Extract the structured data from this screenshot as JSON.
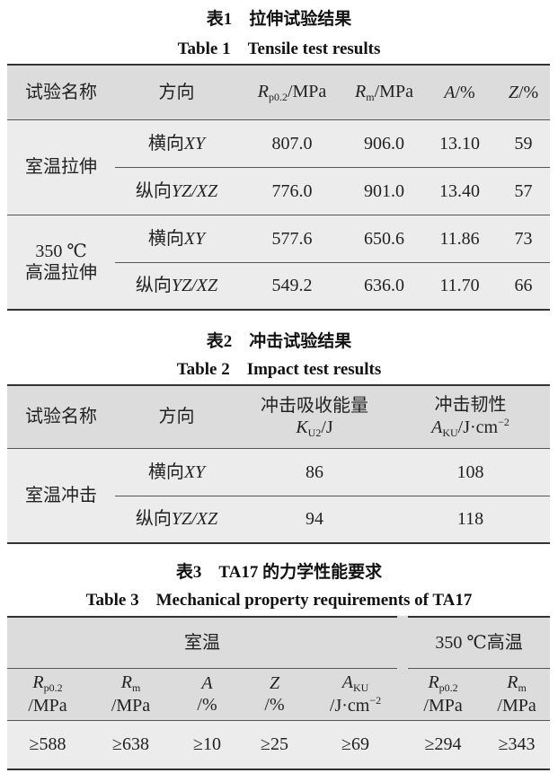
{
  "table1": {
    "title_zh": "表1　拉伸试验结果",
    "title_en": "Table 1　Tensile test results",
    "headers": [
      {
        "text": "试验名称"
      },
      {
        "text": "方向"
      },
      {
        "sym": "R",
        "sub": "p0.2",
        "unit": "/MPa"
      },
      {
        "sym": "R",
        "sub": "m",
        "unit": "/MPa"
      },
      {
        "sym": "A",
        "unit": "/%"
      },
      {
        "sym": "Z",
        "unit": "/%"
      }
    ],
    "groups": [
      {
        "name": "室温拉伸",
        "rows": [
          {
            "dir_zh": "横向",
            "dir_code": "XY",
            "rp02": "807.0",
            "rm": "906.0",
            "a": "13.10",
            "z": "59"
          },
          {
            "dir_zh": "纵向",
            "dir_code": "YZ/XZ",
            "rp02": "776.0",
            "rm": "901.0",
            "a": "13.40",
            "z": "57"
          }
        ]
      },
      {
        "name_line1": "350 ℃",
        "name_line2": "高温拉伸",
        "rows": [
          {
            "dir_zh": "横向",
            "dir_code": "XY",
            "rp02": "577.6",
            "rm": "650.6",
            "a": "11.86",
            "z": "73"
          },
          {
            "dir_zh": "纵向",
            "dir_code": "YZ/XZ",
            "rp02": "549.2",
            "rm": "636.0",
            "a": "11.70",
            "z": "66"
          }
        ]
      }
    ]
  },
  "table2": {
    "title_zh": "表2　冲击试验结果",
    "title_en": "Table 2　Impact test results",
    "headers": {
      "name": "试验名称",
      "dir": "方向",
      "energy_label": "冲击吸收能量",
      "energy_sym": "K",
      "energy_sub": "U2",
      "energy_unit": "/J",
      "tough_label": "冲击韧性",
      "tough_sym": "A",
      "tough_sub": "KU",
      "tough_unit": "/J·cm",
      "tough_exp": "−2"
    },
    "group": "室温冲击",
    "rows": [
      {
        "dir_zh": "横向",
        "dir_code": "XY",
        "k": "86",
        "a": "108"
      },
      {
        "dir_zh": "纵向",
        "dir_code": "YZ/XZ",
        "k": "94",
        "a": "118"
      }
    ]
  },
  "table3": {
    "title_zh": "表3　TA17 的力学性能要求",
    "title_en": "Table 3　Mechanical property requirements of TA17",
    "group_rt": "室温",
    "group_ht": "350 ℃高温",
    "headers": [
      {
        "sym": "R",
        "sub": "p0.2",
        "unit": "/MPa"
      },
      {
        "sym": "R",
        "sub": "m",
        "unit": "/MPa"
      },
      {
        "sym": "A",
        "unit": "/%"
      },
      {
        "sym": "Z",
        "unit": "/%"
      },
      {
        "sym": "A",
        "sub": "KU",
        "unit": "/J·cm",
        "exp": "−2"
      },
      {
        "sym": "R",
        "sub": "p0.2",
        "unit": "/MPa"
      },
      {
        "sym": "R",
        "sub": "m",
        "unit": "/MPa"
      }
    ],
    "values": [
      "≥588",
      "≥638",
      "≥10",
      "≥25",
      "≥69",
      "≥294",
      "≥343"
    ]
  }
}
